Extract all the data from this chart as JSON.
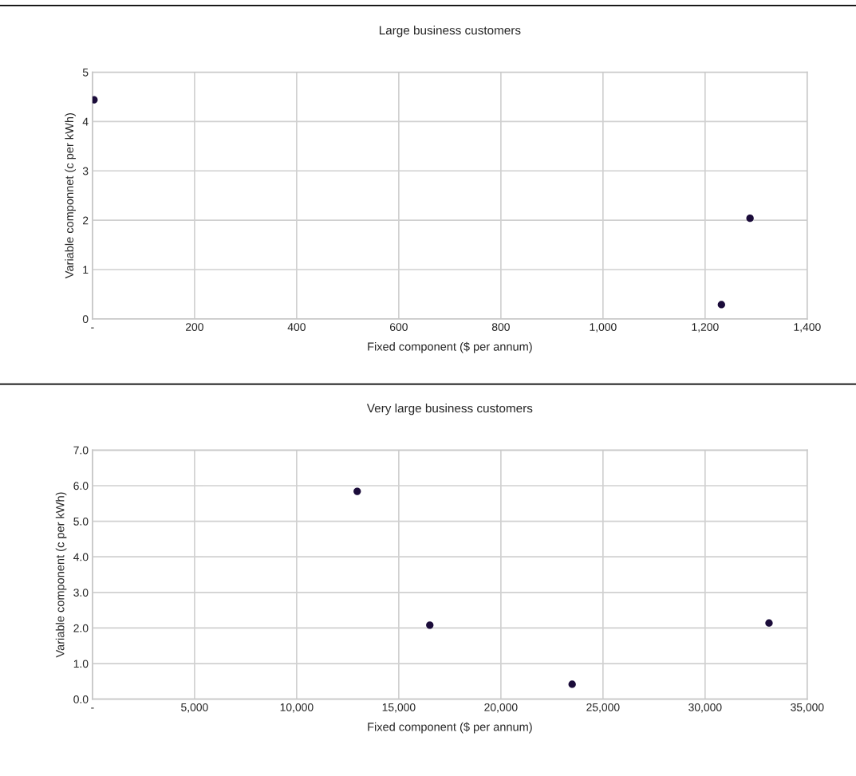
{
  "chart_data": [
    {
      "type": "scatter",
      "title": "Large business customers",
      "xlabel": "Fixed component ($ per annum)",
      "ylabel": "Variable componnet (c per kWh)",
      "x": [
        3,
        1232,
        1288
      ],
      "series": [
        {
          "color": "#1b0c3a",
          "values": [
            4.44,
            0.29,
            2.04
          ]
        }
      ],
      "xlim": [
        0,
        1400
      ],
      "xticks": [
        {
          "value": 0,
          "label": "-"
        },
        {
          "value": 200,
          "label": "200"
        },
        {
          "value": 400,
          "label": "400"
        },
        {
          "value": 600,
          "label": "600"
        },
        {
          "value": 800,
          "label": "800"
        },
        {
          "value": 1000,
          "label": "1,000"
        },
        {
          "value": 1200,
          "label": "1,200"
        },
        {
          "value": 1400,
          "label": "1,400"
        }
      ],
      "ylim": [
        0,
        5
      ],
      "yticks": [
        0,
        1,
        2,
        3,
        4,
        5
      ],
      "grid": true,
      "marker": "circle"
    },
    {
      "type": "scatter",
      "title": "Very large business customers",
      "xlabel": "Fixed component ($ per annum)",
      "ylabel": "Variable component (c per kWh)",
      "x": [
        12965,
        16520,
        23490,
        33130
      ],
      "series": [
        {
          "color": "#1b0c3a",
          "values": [
            5.84,
            2.08,
            0.42,
            2.14
          ]
        }
      ],
      "xlim": [
        0,
        35000
      ],
      "xticks": [
        {
          "value": 0,
          "label": "-"
        },
        {
          "value": 5000,
          "label": "5,000"
        },
        {
          "value": 10000,
          "label": "10,000"
        },
        {
          "value": 15000,
          "label": "15,000"
        },
        {
          "value": 20000,
          "label": "20,000"
        },
        {
          "value": 25000,
          "label": "25,000"
        },
        {
          "value": 30000,
          "label": "30,000"
        },
        {
          "value": 35000,
          "label": "35,000"
        }
      ],
      "ylim": [
        0,
        7
      ],
      "yticks": [
        {
          "value": 0,
          "label": "0.0"
        },
        {
          "value": 1,
          "label": "1.0"
        },
        {
          "value": 2,
          "label": "2.0"
        },
        {
          "value": 3,
          "label": "3.0"
        },
        {
          "value": 4,
          "label": "4.0"
        },
        {
          "value": 5,
          "label": "5.0"
        },
        {
          "value": 6,
          "label": "6.0"
        },
        {
          "value": 7,
          "label": "7.0"
        }
      ],
      "grid": true,
      "marker": "circle"
    }
  ]
}
